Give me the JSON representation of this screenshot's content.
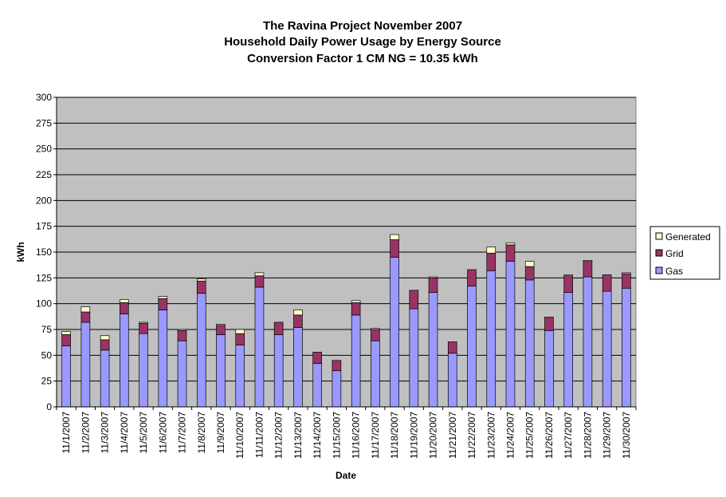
{
  "chart_data": {
    "type": "bar",
    "stacked": true,
    "title": "The Ravina Project November 2007",
    "subtitle": [
      "Household Daily Power Usage by Energy Source",
      "Conversion Factor 1 CM NG = 10.35 kWh"
    ],
    "xlabel": "Date",
    "ylabel": "kWh",
    "ylim": [
      0,
      300
    ],
    "yticks": [
      0,
      25,
      50,
      75,
      100,
      125,
      150,
      175,
      200,
      225,
      250,
      275,
      300
    ],
    "grid": true,
    "legend_position": "right",
    "plot_background": "#c0c0c0",
    "categories": [
      "11/1/2007",
      "11/2/2007",
      "11/3/2007",
      "11/4/2007",
      "11/5/2007",
      "11/6/2007",
      "11/7/2007",
      "11/8/2007",
      "11/9/2007",
      "11/10/2007",
      "11/11/2007",
      "11/12/2007",
      "11/13/2007",
      "11/14/2007",
      "11/15/2007",
      "11/16/2007",
      "11/17/2007",
      "11/18/2007",
      "11/19/2007",
      "11/20/2007",
      "11/21/2007",
      "11/22/2007",
      "11/23/2007",
      "11/24/2007",
      "11/25/2007",
      "11/26/2007",
      "11/27/2007",
      "11/28/2007",
      "11/29/2007",
      "11/30/2007"
    ],
    "series": [
      {
        "name": "Gas",
        "color": "#9999ff",
        "values": [
          59,
          82,
          55,
          90,
          71,
          94,
          64,
          110,
          70,
          60,
          116,
          70,
          77,
          42,
          35,
          89,
          64,
          145,
          95,
          111,
          52,
          117,
          132,
          141,
          123,
          74,
          111,
          126,
          112,
          115
        ]
      },
      {
        "name": "Grid",
        "color": "#993366",
        "values": [
          11,
          10,
          10,
          11,
          10,
          11,
          10,
          12,
          9,
          11,
          11,
          12,
          12,
          11,
          10,
          12,
          11,
          17,
          18,
          14,
          11,
          16,
          17,
          16,
          13,
          13,
          16,
          15,
          16,
          14
        ]
      },
      {
        "name": "Generated",
        "color": "#ffffcc",
        "values": [
          3,
          5,
          4,
          3,
          1,
          2,
          1,
          2,
          1,
          4,
          3,
          0,
          5,
          0,
          0,
          2,
          1,
          5,
          0,
          1,
          0,
          0,
          6,
          2,
          5,
          0,
          1,
          1,
          0,
          1
        ]
      }
    ]
  }
}
